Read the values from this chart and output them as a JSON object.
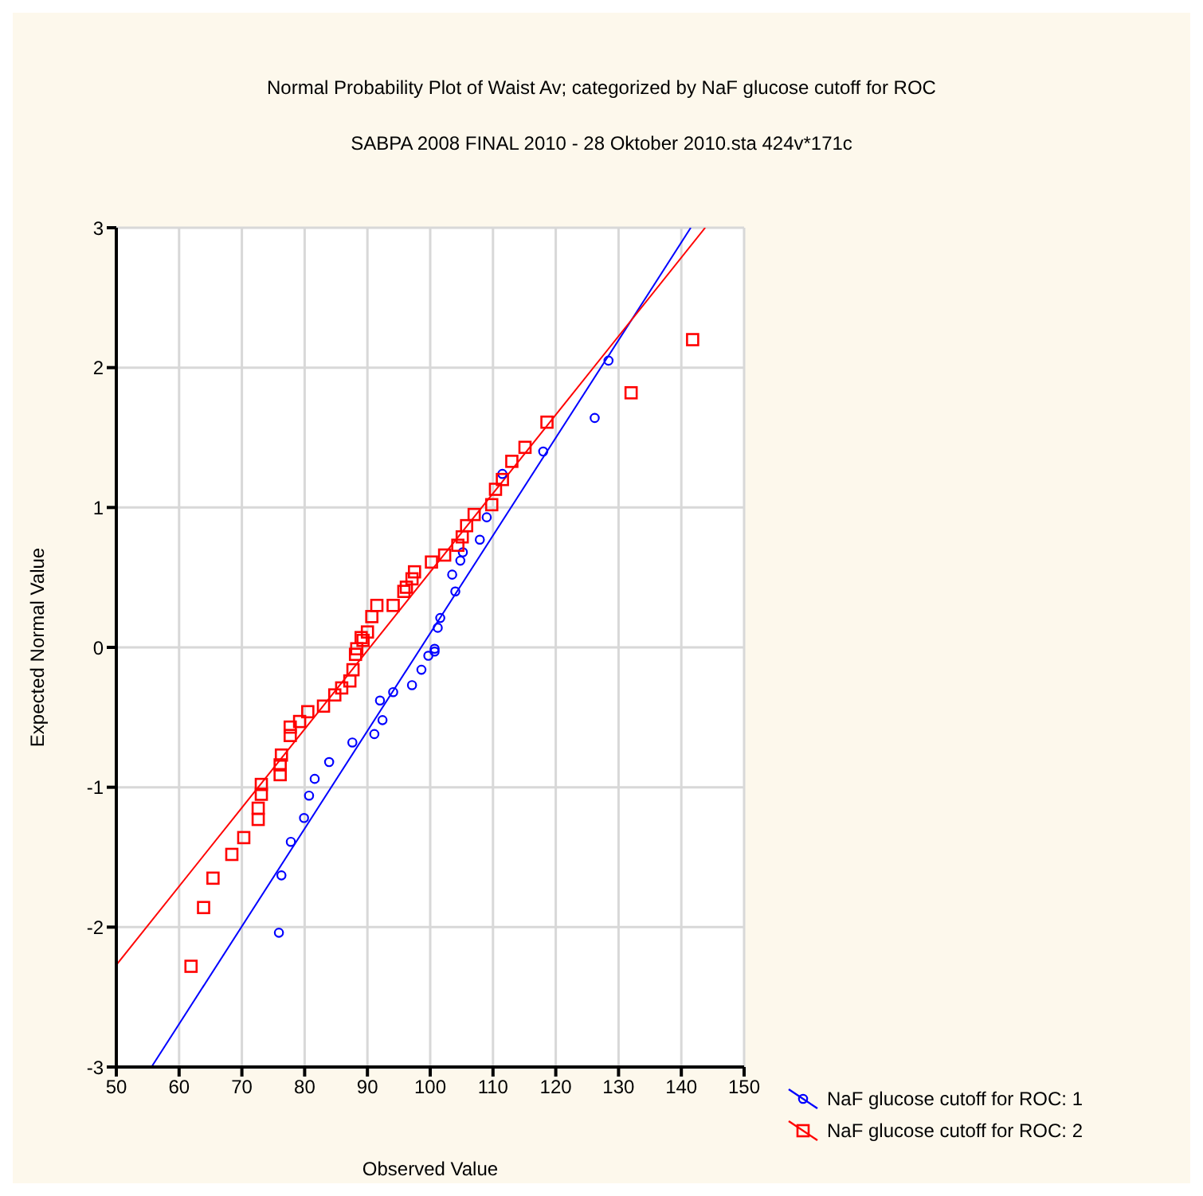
{
  "chart_data": {
    "type": "scatter",
    "title": "Normal Probability Plot of Waist Av; categorized by NaF glucose cutoff for ROC",
    "subtitle": "SABPA 2008 FINAL    2010 - 28 Oktober 2010.sta 424v*171c",
    "xlabel": "Observed Value",
    "ylabel": "Expected Normal Value",
    "xlim": [
      50,
      150
    ],
    "xticks": [
      50,
      60,
      70,
      80,
      90,
      100,
      110,
      120,
      130,
      140,
      150
    ],
    "ylim": [
      -3,
      3
    ],
    "yticks": [
      -3,
      -2,
      -1,
      0,
      1,
      2,
      3
    ],
    "grid": true,
    "legend": "bottom right",
    "series": [
      {
        "name": "NaF glucose cutoff for ROC: 1",
        "marker": "circle",
        "color": "#0000ff",
        "x": [
          128.4,
          126.2,
          118.0,
          111.5,
          109.0,
          107.9,
          105.2,
          104.8,
          103.5,
          104.0,
          101.6,
          101.2,
          100.7,
          100.7,
          99.7,
          98.6,
          97.1,
          94.1,
          92.0,
          92.4,
          91.1,
          87.6,
          83.9,
          81.6,
          80.7,
          79.9,
          77.8,
          76.3,
          75.9
        ],
        "values": [
          2.05,
          1.64,
          1.4,
          1.24,
          0.93,
          0.77,
          0.68,
          0.62,
          0.52,
          0.4,
          0.21,
          0.14,
          -0.01,
          -0.03,
          -0.06,
          -0.16,
          -0.27,
          -0.32,
          -0.38,
          -0.52,
          -0.62,
          -0.68,
          -0.82,
          -0.94,
          -1.06,
          -1.22,
          -1.39,
          -1.63,
          -2.04
        ]
      },
      {
        "name": "NaF glucose cutoff for ROC: 2",
        "marker": "square",
        "color": "#ff0000",
        "x": [
          141.8,
          132.0,
          118.6,
          115.1,
          113.0,
          111.5,
          110.4,
          109.8,
          107.0,
          105.8,
          105.1,
          104.4,
          102.3,
          100.2,
          97.5,
          97.1,
          96.2,
          95.8,
          94.1,
          91.5,
          90.7,
          90.0,
          89.0,
          88.3,
          89.3,
          88.1,
          87.7,
          87.2,
          85.9,
          84.8,
          83.0,
          80.5,
          79.2,
          77.7,
          77.7,
          76.3,
          76.1,
          76.1,
          73.1,
          73.1,
          72.6,
          72.6,
          70.3,
          68.4,
          65.4,
          63.9,
          61.9
        ],
        "values": [
          2.2,
          1.82,
          1.61,
          1.43,
          1.33,
          1.2,
          1.13,
          1.02,
          0.95,
          0.87,
          0.79,
          0.73,
          0.66,
          0.61,
          0.54,
          0.49,
          0.43,
          0.4,
          0.3,
          0.3,
          0.22,
          0.11,
          0.07,
          -0.01,
          0.05,
          -0.05,
          -0.16,
          -0.24,
          -0.29,
          -0.34,
          -0.42,
          -0.46,
          -0.53,
          -0.57,
          -0.63,
          -0.77,
          -0.84,
          -0.91,
          -0.98,
          -1.05,
          -1.15,
          -1.23,
          -1.36,
          -1.48,
          -1.65,
          -1.86,
          -2.28
        ]
      },
      {
        "type": "line",
        "marker": "none",
        "color": "#0000ff",
        "x": [
          55.6,
          141.5
        ],
        "values": [
          -3,
          3
        ]
      },
      {
        "type": "line",
        "marker": "none",
        "color": "#ff0000",
        "x": [
          50,
          143.8
        ],
        "values": [
          -2.27,
          3
        ]
      }
    ]
  }
}
